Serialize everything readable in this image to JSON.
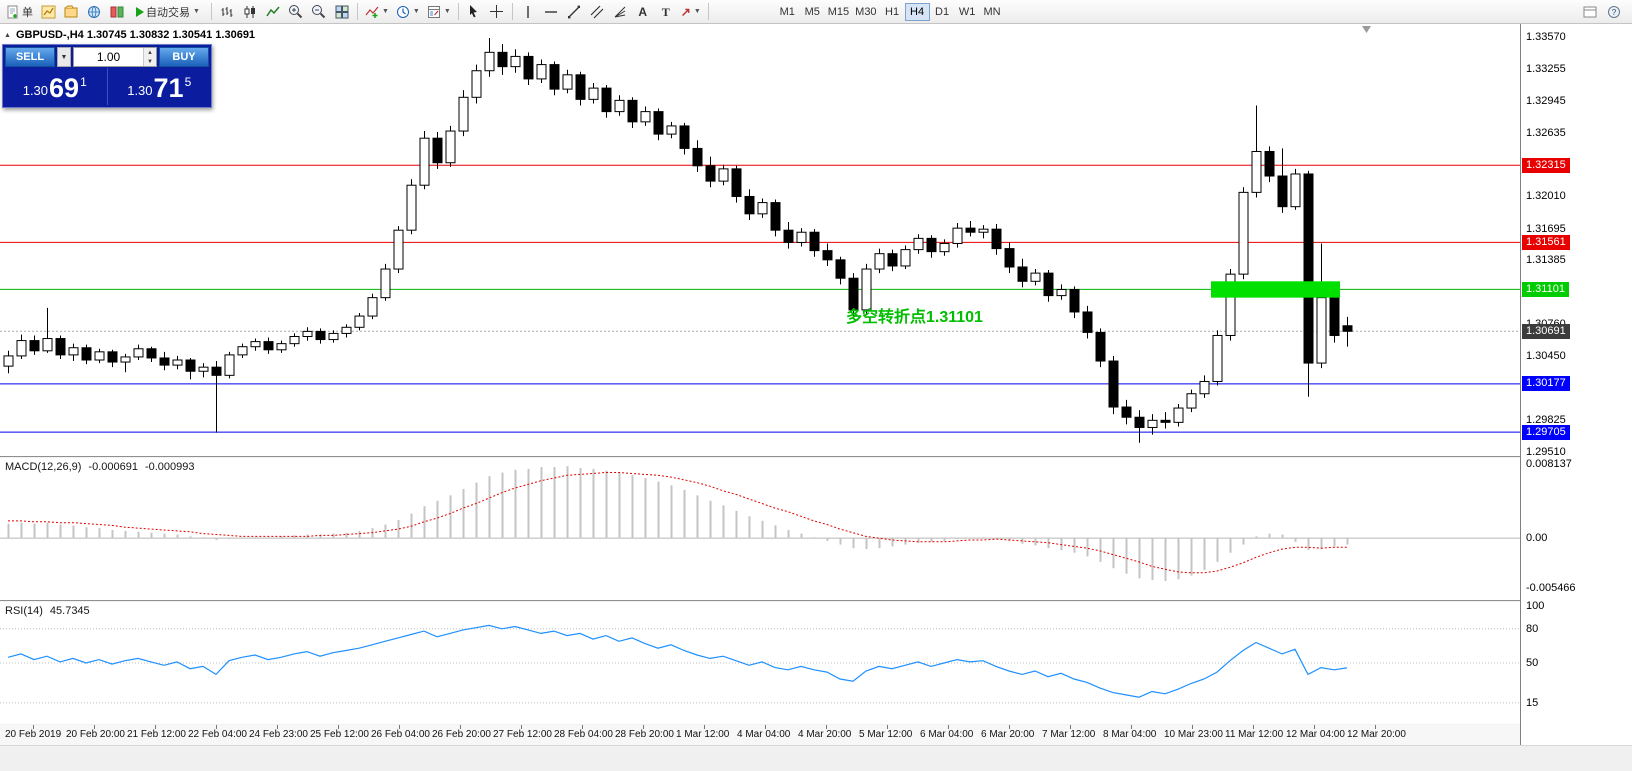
{
  "toolbar": {
    "new_order_label": "单",
    "autotrade_label": "自动交易",
    "timeframes": [
      "M1",
      "M5",
      "M15",
      "M30",
      "H1",
      "H4",
      "D1",
      "W1",
      "MN"
    ],
    "active_timeframe": "H4"
  },
  "chart": {
    "collapse_arrow": "▲",
    "symbol_line": "GBPUSD-,H4 1.30745 1.30832 1.30541 1.30691",
    "oneclick": {
      "sell_label": "SELL",
      "buy_label": "BUY",
      "volume": "1.00",
      "sell_price_prefix": "1.30",
      "sell_price_big": "69",
      "sell_price_sup": "1",
      "buy_price_prefix": "1.30",
      "buy_price_big": "71",
      "buy_price_sup": "5"
    },
    "annotation": {
      "text": "多空转折点1.31101",
      "color": "#00BE00"
    },
    "price_axis": [
      "1.33570",
      "1.33255",
      "1.32945",
      "1.32635",
      "1.32010",
      "1.31695",
      "1.31385",
      "1.30760",
      "1.30450",
      "1.29825",
      "1.29510"
    ],
    "price_tags": [
      {
        "price": 1.32315,
        "label": "1.32315",
        "bg": "#e80000",
        "fg": "#ffffff"
      },
      {
        "price": 1.31561,
        "label": "1.31561",
        "bg": "#e80000",
        "fg": "#ffffff"
      },
      {
        "price": 1.31101,
        "label": "1.31101",
        "bg": "#00cc00",
        "fg": "#ffffff"
      },
      {
        "price": 1.30691,
        "label": "1.30691",
        "bg": "#3c3c3c",
        "fg": "#ffffff"
      },
      {
        "price": 1.30177,
        "label": "1.30177",
        "bg": "#0000ff",
        "fg": "#ffffff"
      },
      {
        "price": 1.29705,
        "label": "1.29705",
        "bg": "#0000ff",
        "fg": "#ffffff"
      }
    ],
    "hlines": [
      {
        "price": 1.32315,
        "color": "#e80000",
        "style": "solid"
      },
      {
        "price": 1.31561,
        "color": "#e80000",
        "style": "solid"
      },
      {
        "price": 1.31101,
        "color": "#00b400",
        "style": "solid"
      },
      {
        "price": 1.30177,
        "color": "#0000f0",
        "style": "solid"
      },
      {
        "price": 1.29705,
        "color": "#0000f0",
        "style": "solid"
      },
      {
        "price": 1.30691,
        "color": "#a8a8a8",
        "style": "dot"
      }
    ],
    "rectangle": {
      "from_candle": 93,
      "to_candle": 102,
      "price_top": 1.3118,
      "price_bottom": 1.3102,
      "color": "#00e000"
    }
  },
  "macd": {
    "name": "MACD(12,26,9)",
    "value_main": "-0.000691",
    "value_signal": "-0.000993",
    "axis": [
      {
        "v": 0.008137,
        "label": "0.008137"
      },
      {
        "v": 0,
        "label": "0.00"
      },
      {
        "v": -0.005466,
        "label": "-0.005466"
      }
    ]
  },
  "rsi": {
    "name": "RSI(14)",
    "value": "45.7345",
    "axis": [
      {
        "v": 100,
        "label": "100"
      },
      {
        "v": 80,
        "label": "80"
      },
      {
        "v": 50,
        "label": "50"
      },
      {
        "v": 15,
        "label": "15"
      }
    ],
    "levels": [
      80,
      50,
      15
    ]
  },
  "time_axis": [
    "20 Feb 2019",
    "20 Feb 20:00",
    "21 Feb 12:00",
    "22 Feb 04:00",
    "24 Feb 23:00",
    "25 Feb 12:00",
    "26 Feb 04:00",
    "26 Feb 20:00",
    "27 Feb 12:00",
    "28 Feb 04:00",
    "28 Feb 20:00",
    "1 Mar 12:00",
    "4 Mar 04:00",
    "4 Mar 20:00",
    "5 Mar 12:00",
    "6 Mar 04:00",
    "6 Mar 20:00",
    "7 Mar 12:00",
    "8 Mar 04:00",
    "10 Mar 23:00",
    "11 Mar 12:00",
    "12 Mar 04:00",
    "12 Mar 20:00"
  ],
  "chart_data": {
    "type": "candlestick",
    "symbol": "GBPUSD-",
    "timeframe": "H4",
    "title": "GBPUSD- H4",
    "ylim": [
      1.2951,
      1.3357
    ],
    "ohlc": [
      [
        1.3035,
        1.305,
        1.3028,
        1.3045
      ],
      [
        1.3045,
        1.3066,
        1.3042,
        1.306
      ],
      [
        1.306,
        1.3065,
        1.3046,
        1.305
      ],
      [
        1.305,
        1.3092,
        1.3048,
        1.3062
      ],
      [
        1.3062,
        1.3065,
        1.3042,
        1.3046
      ],
      [
        1.3046,
        1.3057,
        1.304,
        1.3053
      ],
      [
        1.3053,
        1.3056,
        1.3037,
        1.3041
      ],
      [
        1.3041,
        1.3052,
        1.3038,
        1.3049
      ],
      [
        1.3049,
        1.3051,
        1.3034,
        1.3039
      ],
      [
        1.3039,
        1.3047,
        1.3029,
        1.3044
      ],
      [
        1.3044,
        1.3056,
        1.3041,
        1.3052
      ],
      [
        1.3052,
        1.3054,
        1.3039,
        1.3043
      ],
      [
        1.3043,
        1.3049,
        1.3031,
        1.3036
      ],
      [
        1.3036,
        1.3045,
        1.3032,
        1.3041
      ],
      [
        1.3041,
        1.3043,
        1.3022,
        1.303
      ],
      [
        1.303,
        1.3038,
        1.3024,
        1.3034
      ],
      [
        1.3034,
        1.304,
        1.297,
        1.3026
      ],
      [
        1.3026,
        1.3049,
        1.3023,
        1.3046
      ],
      [
        1.3046,
        1.3057,
        1.3043,
        1.3054
      ],
      [
        1.3054,
        1.3062,
        1.305,
        1.3059
      ],
      [
        1.3059,
        1.3063,
        1.3047,
        1.3051
      ],
      [
        1.3051,
        1.306,
        1.3048,
        1.3057
      ],
      [
        1.3057,
        1.3067,
        1.3054,
        1.3064
      ],
      [
        1.3064,
        1.3073,
        1.306,
        1.3069
      ],
      [
        1.3069,
        1.3072,
        1.3057,
        1.3061
      ],
      [
        1.3061,
        1.307,
        1.3058,
        1.3067
      ],
      [
        1.3067,
        1.3076,
        1.3063,
        1.3073
      ],
      [
        1.3073,
        1.3087,
        1.307,
        1.3084
      ],
      [
        1.3084,
        1.3106,
        1.3081,
        1.3102
      ],
      [
        1.3102,
        1.3135,
        1.3099,
        1.313
      ],
      [
        1.313,
        1.3172,
        1.3126,
        1.3168
      ],
      [
        1.3168,
        1.3218,
        1.3164,
        1.3212
      ],
      [
        1.3212,
        1.3265,
        1.3208,
        1.3258
      ],
      [
        1.3258,
        1.3264,
        1.3228,
        1.3234
      ],
      [
        1.3234,
        1.327,
        1.323,
        1.3265
      ],
      [
        1.3265,
        1.3305,
        1.326,
        1.3298
      ],
      [
        1.3298,
        1.333,
        1.3292,
        1.3324
      ],
      [
        1.3324,
        1.3356,
        1.3318,
        1.3342
      ],
      [
        1.3342,
        1.335,
        1.332,
        1.3328
      ],
      [
        1.3328,
        1.3345,
        1.3322,
        1.3338
      ],
      [
        1.3338,
        1.3342,
        1.331,
        1.3316
      ],
      [
        1.3316,
        1.3335,
        1.3312,
        1.333
      ],
      [
        1.333,
        1.3333,
        1.33,
        1.3306
      ],
      [
        1.3306,
        1.3325,
        1.3302,
        1.332
      ],
      [
        1.332,
        1.3323,
        1.329,
        1.3296
      ],
      [
        1.3296,
        1.3312,
        1.3292,
        1.3307
      ],
      [
        1.3307,
        1.331,
        1.3278,
        1.3284
      ],
      [
        1.3284,
        1.33,
        1.328,
        1.3295
      ],
      [
        1.3295,
        1.3298,
        1.3268,
        1.3274
      ],
      [
        1.3274,
        1.3289,
        1.327,
        1.3284
      ],
      [
        1.3284,
        1.3287,
        1.3256,
        1.3262
      ],
      [
        1.3262,
        1.3274,
        1.3258,
        1.327
      ],
      [
        1.327,
        1.3273,
        1.3242,
        1.3248
      ],
      [
        1.3248,
        1.3256,
        1.3225,
        1.3231
      ],
      [
        1.3231,
        1.324,
        1.321,
        1.3216
      ],
      [
        1.3216,
        1.3232,
        1.3212,
        1.3228
      ],
      [
        1.3228,
        1.3231,
        1.3195,
        1.3201
      ],
      [
        1.3201,
        1.3208,
        1.3178,
        1.3184
      ],
      [
        1.3184,
        1.3199,
        1.318,
        1.3195
      ],
      [
        1.3195,
        1.3198,
        1.3162,
        1.3168
      ],
      [
        1.3168,
        1.3176,
        1.315,
        1.3156
      ],
      [
        1.3156,
        1.317,
        1.3152,
        1.3166
      ],
      [
        1.3166,
        1.3169,
        1.3142,
        1.3148
      ],
      [
        1.3148,
        1.3155,
        1.3133,
        1.3139
      ],
      [
        1.3139,
        1.3142,
        1.3115,
        1.3121
      ],
      [
        1.3121,
        1.3126,
        1.3084,
        1.309
      ],
      [
        1.309,
        1.3135,
        1.3086,
        1.313
      ],
      [
        1.313,
        1.315,
        1.3126,
        1.3145
      ],
      [
        1.3145,
        1.3149,
        1.3128,
        1.3133
      ],
      [
        1.3133,
        1.3153,
        1.313,
        1.3149
      ],
      [
        1.3149,
        1.3164,
        1.3145,
        1.316
      ],
      [
        1.316,
        1.3163,
        1.3141,
        1.3147
      ],
      [
        1.3147,
        1.3159,
        1.3143,
        1.3155
      ],
      [
        1.3155,
        1.3175,
        1.3151,
        1.317
      ],
      [
        1.317,
        1.3177,
        1.3162,
        1.3166
      ],
      [
        1.3166,
        1.3173,
        1.316,
        1.3169
      ],
      [
        1.3169,
        1.3174,
        1.3144,
        1.315
      ],
      [
        1.315,
        1.3156,
        1.3126,
        1.3132
      ],
      [
        1.3132,
        1.314,
        1.3112,
        1.3118
      ],
      [
        1.3118,
        1.313,
        1.3114,
        1.3126
      ],
      [
        1.3126,
        1.3129,
        1.3098,
        1.3104
      ],
      [
        1.3104,
        1.3115,
        1.31,
        1.311
      ],
      [
        1.311,
        1.3113,
        1.3082,
        1.3088
      ],
      [
        1.3088,
        1.3094,
        1.3062,
        1.3068
      ],
      [
        1.3068,
        1.3072,
        1.3034,
        1.304
      ],
      [
        1.304,
        1.3045,
        1.2988,
        1.2995
      ],
      [
        1.2995,
        1.3002,
        1.2978,
        1.2985
      ],
      [
        1.2985,
        1.2992,
        1.296,
        1.2975
      ],
      [
        1.2975,
        1.2988,
        1.2968,
        1.2982
      ],
      [
        1.2982,
        1.299,
        1.2974,
        1.298
      ],
      [
        1.298,
        1.2998,
        1.2976,
        1.2994
      ],
      [
        1.2994,
        1.3012,
        1.299,
        1.3008
      ],
      [
        1.3008,
        1.3026,
        1.3004,
        1.302
      ],
      [
        1.302,
        1.307,
        1.3016,
        1.3065
      ],
      [
        1.3065,
        1.313,
        1.306,
        1.3125
      ],
      [
        1.3125,
        1.321,
        1.312,
        1.3205
      ],
      [
        1.3205,
        1.329,
        1.32,
        1.3245
      ],
      [
        1.3245,
        1.325,
        1.3215,
        1.3221
      ],
      [
        1.3221,
        1.3248,
        1.3185,
        1.3191
      ],
      [
        1.3191,
        1.3228,
        1.3188,
        1.3223
      ],
      [
        1.3223,
        1.3226,
        1.3005,
        1.3038
      ],
      [
        1.3038,
        1.3155,
        1.3033,
        1.3102
      ],
      [
        1.3102,
        1.3108,
        1.3058,
        1.3065
      ],
      [
        1.30745,
        1.30832,
        1.30541,
        1.30691
      ]
    ],
    "indicators": {
      "macd": {
        "params": [
          12,
          26,
          9
        ],
        "range": [
          -0.005466,
          0.008137
        ],
        "histogram": [
          0.0016,
          0.0017,
          0.0016,
          0.0017,
          0.0015,
          0.0014,
          0.0012,
          0.0011,
          0.0009,
          0.0008,
          0.0007,
          0.0006,
          0.0005,
          0.0004,
          0.0002,
          0.0001,
          -0.0002,
          -0.0001,
          0.0,
          0.0001,
          0.0001,
          0.0002,
          0.0003,
          0.0004,
          0.0004,
          0.0005,
          0.0006,
          0.0008,
          0.0011,
          0.0015,
          0.002,
          0.0027,
          0.0035,
          0.0041,
          0.0047,
          0.0054,
          0.0061,
          0.0068,
          0.0072,
          0.0075,
          0.0076,
          0.0078,
          0.0078,
          0.0079,
          0.0077,
          0.0076,
          0.0074,
          0.0072,
          0.0069,
          0.0066,
          0.0062,
          0.0058,
          0.0053,
          0.0047,
          0.0041,
          0.0036,
          0.003,
          0.0024,
          0.0019,
          0.0014,
          0.0009,
          0.0005,
          0.0001,
          -0.0003,
          -0.0007,
          -0.0011,
          -0.0012,
          -0.0011,
          -0.0009,
          -0.0007,
          -0.0005,
          -0.0004,
          -0.0003,
          -0.0001,
          0.0,
          0.0001,
          0.0,
          -0.0003,
          -0.0006,
          -0.0008,
          -0.0011,
          -0.0013,
          -0.0016,
          -0.002,
          -0.0026,
          -0.0033,
          -0.0039,
          -0.0044,
          -0.0046,
          -0.0047,
          -0.0045,
          -0.0041,
          -0.0035,
          -0.0026,
          -0.0016,
          -0.0007,
          0.0002,
          0.0005,
          0.0004,
          -0.0004,
          -0.0013,
          -0.0012,
          -0.0009,
          -0.00069
        ],
        "signal": [
          0.0019,
          0.0019,
          0.0018,
          0.0018,
          0.0017,
          0.0017,
          0.0016,
          0.0015,
          0.0014,
          0.0012,
          0.0011,
          0.001,
          0.0009,
          0.0008,
          0.0007,
          0.0005,
          0.0004,
          0.0003,
          0.0002,
          0.0002,
          0.0002,
          0.0002,
          0.0002,
          0.0002,
          0.0003,
          0.0003,
          0.0004,
          0.0005,
          0.0006,
          0.0008,
          0.001,
          0.0013,
          0.0018,
          0.0022,
          0.0027,
          0.0033,
          0.0038,
          0.0044,
          0.005,
          0.0055,
          0.0059,
          0.0063,
          0.0066,
          0.0069,
          0.007,
          0.0071,
          0.0072,
          0.0072,
          0.0071,
          0.007,
          0.0069,
          0.0067,
          0.0064,
          0.0061,
          0.0057,
          0.0052,
          0.0048,
          0.0043,
          0.0038,
          0.0033,
          0.0029,
          0.0024,
          0.0019,
          0.0015,
          0.001,
          0.0006,
          0.0002,
          0.0,
          -0.0002,
          -0.0003,
          -0.0004,
          -0.0004,
          -0.0004,
          -0.0003,
          -0.0002,
          -0.0002,
          -0.0001,
          -0.0002,
          -0.0003,
          -0.0004,
          -0.0005,
          -0.0007,
          -0.0009,
          -0.0011,
          -0.0014,
          -0.0018,
          -0.0022,
          -0.0026,
          -0.0031,
          -0.0034,
          -0.0037,
          -0.0038,
          -0.0038,
          -0.0036,
          -0.0032,
          -0.0027,
          -0.0021,
          -0.0016,
          -0.0012,
          -0.001,
          -0.001,
          -0.0011,
          -0.001,
          -0.00099
        ]
      },
      "rsi": {
        "params": [
          14
        ],
        "range": [
          0,
          100
        ],
        "values": [
          55,
          58,
          53,
          56,
          51,
          54,
          50,
          53,
          49,
          52,
          54,
          51,
          48,
          51,
          45,
          47,
          40,
          52,
          55,
          57,
          53,
          55,
          58,
          60,
          56,
          59,
          61,
          63,
          66,
          69,
          72,
          75,
          78,
          73,
          76,
          79,
          81,
          83,
          80,
          82,
          79,
          76,
          78,
          74,
          76,
          71,
          74,
          69,
          72,
          67,
          63,
          66,
          61,
          57,
          54,
          56,
          52,
          48,
          51,
          46,
          44,
          47,
          44,
          42,
          36,
          34,
          43,
          47,
          45,
          48,
          51,
          47,
          50,
          53,
          51,
          52,
          47,
          43,
          40,
          43,
          38,
          41,
          36,
          33,
          28,
          24,
          22,
          20,
          25,
          23,
          27,
          32,
          36,
          42,
          52,
          61,
          68,
          63,
          58,
          62,
          40,
          46,
          44,
          45.7
        ]
      }
    }
  }
}
